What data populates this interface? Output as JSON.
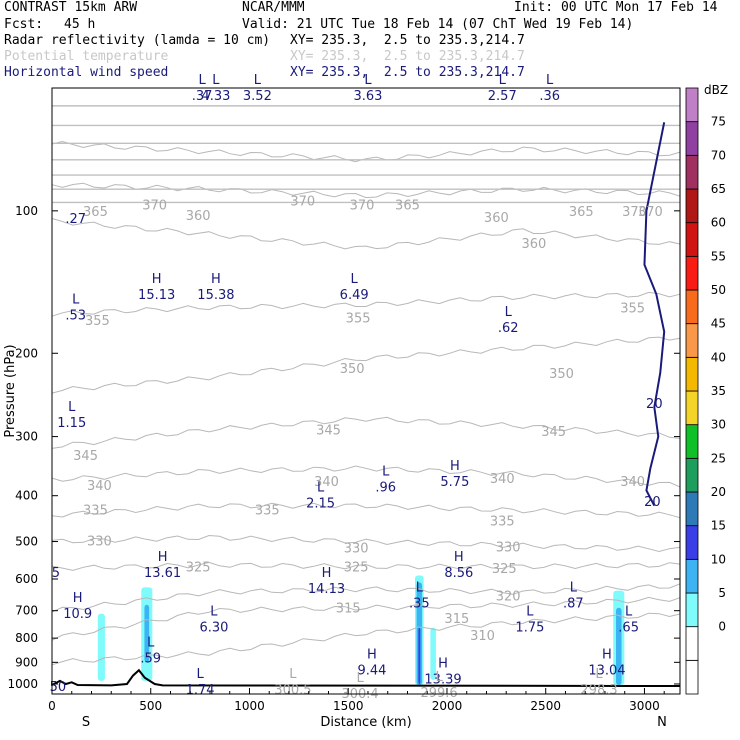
{
  "header": {
    "title_left": "CONTRAST 15km ARW",
    "title_center": "NCAR/MMM",
    "init": "Init: 00 UTC Mon 17 Feb 14",
    "fcst_label": "Fcst:",
    "fcst_value": "45 h",
    "valid": "Valid: 21 UTC Tue 18 Feb 14 (07 ChT Wed 19 Feb 14)",
    "field1": "Radar reflectivity (lamda = 10 cm)",
    "field1_xy": "XY= 235.3,  2.5 to 235.3,214.7",
    "field2": "Potential temperature",
    "field2_xy": "XY= 235.3,  2.5 to 235.3,214.7",
    "field3": "Horizontal wind speed",
    "field3_xy": "XY= 235.3,  2.5 to 235.3,214.7",
    "colors": {
      "field1": "#000000",
      "field2": "#c8c8c8",
      "field3": "#1a1a7a"
    }
  },
  "chart_data": {
    "type": "cross-section",
    "xlabel": "Distance (km)",
    "ylabel": "Pressure (hPa)",
    "xlim": [
      0,
      3180
    ],
    "ylim_hpa": [
      1050,
      55
    ],
    "x_ticks": [
      0,
      500,
      1000,
      1500,
      2000,
      2500,
      3000
    ],
    "y_ticks": [
      100,
      200,
      300,
      400,
      500,
      600,
      700,
      800,
      900,
      1000
    ],
    "x_end_labels": {
      "left": "S",
      "right": "N"
    },
    "colorbar": {
      "unit": "dBZ",
      "levels": [
        -5,
        0,
        5,
        10,
        15,
        20,
        25,
        30,
        35,
        40,
        45,
        50,
        55,
        60,
        65,
        70,
        75,
        80
      ],
      "tick_labels": [
        "0",
        "5",
        "10",
        "15",
        "20",
        "25",
        "30",
        "35",
        "40",
        "45",
        "50",
        "55",
        "60",
        "65",
        "70",
        "75"
      ],
      "colors": [
        "#ffffff",
        "#ffffff",
        "#7ffbfb",
        "#3cb4f4",
        "#3a3ee6",
        "#2e7ab7",
        "#1e9e5c",
        "#10c028",
        "#f4d428",
        "#f4b800",
        "#f89848",
        "#f86a1c",
        "#f81c14",
        "#d01414",
        "#b01818",
        "#a03060",
        "#9040a0",
        "#c080c8"
      ]
    },
    "theta_contours": [
      {
        "label": "370",
        "p": [
          72,
          75,
          78,
          74,
          76
        ]
      },
      {
        "label": "365",
        "p": [
          88,
          90,
          93,
          90,
          92
        ]
      },
      {
        "label": "360",
        "p": [
          105,
          112,
          120,
          110,
          118
        ]
      },
      {
        "label": "355",
        "p": [
          165,
          160,
          158,
          152,
          150
        ]
      },
      {
        "label": "350",
        "p": [
          240,
          225,
          205,
          195,
          185
        ]
      },
      {
        "label": "345",
        "p": [
          315,
          290,
          275,
          285,
          300
        ]
      },
      {
        "label": "340",
        "p": [
          370,
          355,
          350,
          360,
          380
        ]
      },
      {
        "label": "335",
        "p": [
          440,
          420,
          420,
          430,
          440
        ]
      },
      {
        "label": "330",
        "p": [
          500,
          490,
          500,
          510,
          520
        ]
      },
      {
        "label": "325",
        "p": [
          570,
          560,
          565,
          565,
          560
        ]
      },
      {
        "label": "320",
        "p": [
          700,
          640,
          630,
          640,
          620
        ]
      },
      {
        "label": "315",
        "p": [
          800,
          700,
          690,
          680,
          660
        ]
      },
      {
        "label": "310",
        "p": [
          900,
          860,
          780,
          740,
          710
        ]
      }
    ],
    "theta_labels": [
      {
        "x": 220,
        "p": 100,
        "text": "365"
      },
      {
        "x": 520,
        "p": 97,
        "text": "370"
      },
      {
        "x": 740,
        "p": 102,
        "text": "360"
      },
      {
        "x": 1270,
        "p": 95,
        "text": "370"
      },
      {
        "x": 1570,
        "p": 97,
        "text": "370"
      },
      {
        "x": 1800,
        "p": 97,
        "text": "365"
      },
      {
        "x": 2250,
        "p": 103,
        "text": "360"
      },
      {
        "x": 2440,
        "p": 117,
        "text": "360"
      },
      {
        "x": 2680,
        "p": 100,
        "text": "365"
      },
      {
        "x": 2950,
        "p": 100,
        "text": "370"
      },
      {
        "x": 230,
        "p": 170,
        "text": "355"
      },
      {
        "x": 1550,
        "p": 168,
        "text": "355"
      },
      {
        "x": 2940,
        "p": 160,
        "text": "355"
      },
      {
        "x": 1520,
        "p": 215,
        "text": "350"
      },
      {
        "x": 2580,
        "p": 220,
        "text": "350"
      },
      {
        "x": 1400,
        "p": 290,
        "text": "345"
      },
      {
        "x": 2540,
        "p": 292,
        "text": "345"
      },
      {
        "x": 170,
        "p": 328,
        "text": "345"
      },
      {
        "x": 240,
        "p": 380,
        "text": "340"
      },
      {
        "x": 1390,
        "p": 372,
        "text": "340"
      },
      {
        "x": 2280,
        "p": 367,
        "text": "340"
      },
      {
        "x": 2940,
        "p": 372,
        "text": "340"
      },
      {
        "x": 220,
        "p": 428,
        "text": "335"
      },
      {
        "x": 1090,
        "p": 428,
        "text": "335"
      },
      {
        "x": 2280,
        "p": 451,
        "text": "335"
      },
      {
        "x": 240,
        "p": 497,
        "text": "330"
      },
      {
        "x": 1540,
        "p": 515,
        "text": "330"
      },
      {
        "x": 2310,
        "p": 512,
        "text": "330"
      },
      {
        "x": 740,
        "p": 564,
        "text": "325"
      },
      {
        "x": 1540,
        "p": 564,
        "text": "325"
      },
      {
        "x": 2290,
        "p": 569,
        "text": "325"
      },
      {
        "x": 2310,
        "p": 650,
        "text": "320"
      },
      {
        "x": 1500,
        "p": 689,
        "text": "315"
      },
      {
        "x": 2050,
        "p": 726,
        "text": "315"
      },
      {
        "x": 2180,
        "p": 787,
        "text": "310"
      }
    ],
    "wind_extrema": [
      {
        "x": 760,
        "p": 55,
        "letter": "L",
        "value": ".37"
      },
      {
        "x": 830,
        "p": 55,
        "letter": "L",
        "value": "4.33"
      },
      {
        "x": 1040,
        "p": 55,
        "letter": "L",
        "value": "3.52"
      },
      {
        "x": 1600,
        "p": 55,
        "letter": "L",
        "value": "3.63"
      },
      {
        "x": 2280,
        "p": 55,
        "letter": "L",
        "value": "2.57"
      },
      {
        "x": 2520,
        "p": 55,
        "letter": "L",
        "value": ".36"
      },
      {
        "x": 120,
        "p": 100,
        "letter": "",
        "value": ".27"
      },
      {
        "x": 120,
        "p": 160,
        "letter": "L",
        "value": ".53"
      },
      {
        "x": 530,
        "p": 145,
        "letter": "H",
        "value": "15.13"
      },
      {
        "x": 830,
        "p": 145,
        "letter": "H",
        "value": "15.38"
      },
      {
        "x": 1530,
        "p": 145,
        "letter": "L",
        "value": "6.49"
      },
      {
        "x": 2310,
        "p": 170,
        "letter": "L",
        "value": ".62"
      },
      {
        "x": 100,
        "p": 270,
        "letter": "L",
        "value": "1.15"
      },
      {
        "x": 2040,
        "p": 360,
        "letter": "H",
        "value": "5.75"
      },
      {
        "x": 1690,
        "p": 370,
        "letter": "L",
        "value": ".96"
      },
      {
        "x": 1360,
        "p": 400,
        "letter": "L",
        "value": "2.15"
      },
      {
        "x": 20,
        "p": 560,
        "letter": "",
        "value": "5"
      },
      {
        "x": 560,
        "p": 560,
        "letter": "H",
        "value": "13.61"
      },
      {
        "x": 2060,
        "p": 560,
        "letter": "H",
        "value": "8.56"
      },
      {
        "x": 1390,
        "p": 606,
        "letter": "H",
        "value": "14.13"
      },
      {
        "x": 1860,
        "p": 650,
        "letter": "L",
        "value": ".35"
      },
      {
        "x": 2640,
        "p": 650,
        "letter": "L",
        "value": ".87"
      },
      {
        "x": 130,
        "p": 685,
        "letter": "H",
        "value": "10.9"
      },
      {
        "x": 820,
        "p": 730,
        "letter": "L",
        "value": "6.30"
      },
      {
        "x": 2420,
        "p": 730,
        "letter": "L",
        "value": "1.75"
      },
      {
        "x": 2920,
        "p": 730,
        "letter": "L",
        "value": ".65"
      },
      {
        "x": 500,
        "p": 850,
        "letter": "L",
        "value": ".59"
      },
      {
        "x": 1620,
        "p": 900,
        "letter": "H",
        "value": "9.44"
      },
      {
        "x": 2810,
        "p": 900,
        "letter": "H",
        "value": "13.04"
      },
      {
        "x": 1980,
        "p": 940,
        "letter": "H",
        "value": "13.39"
      },
      {
        "x": 750,
        "p": 990,
        "letter": "L",
        "value": "1.74"
      },
      {
        "x": 30,
        "p": 975,
        "letter": "",
        "value": "50"
      }
    ],
    "theta_extrema": [
      {
        "x": 1220,
        "p": 990,
        "letter": "L",
        "value": "300.5"
      },
      {
        "x": 1560,
        "p": 1010,
        "letter": "L",
        "value": "300.4"
      },
      {
        "x": 1960,
        "p": 1005,
        "letter": "L",
        "value": "299.6"
      },
      {
        "x": 2770,
        "p": 990,
        "letter": "L",
        "value": "298.3"
      }
    ],
    "wind_contour_labels": [
      {
        "x": 3030,
        "p": 100,
        "text": "370"
      },
      {
        "x": 3050,
        "p": 255,
        "text": "20"
      },
      {
        "x": 3040,
        "p": 410,
        "text": "20"
      }
    ],
    "reflectivity_columns": [
      {
        "x": 250,
        "halfwidth": 18,
        "p_top": 710,
        "p_bot": 985,
        "dbz": 5
      },
      {
        "x": 480,
        "halfwidth": 28,
        "p_top": 625,
        "p_bot": 985,
        "dbz": 5
      },
      {
        "x": 480,
        "halfwidth": 12,
        "p_top": 680,
        "p_bot": 900,
        "dbz": 10
      },
      {
        "x": 1860,
        "halfwidth": 22,
        "p_top": 590,
        "p_bot": 1005,
        "dbz": 5
      },
      {
        "x": 1860,
        "halfwidth": 14,
        "p_top": 610,
        "p_bot": 1005,
        "dbz": 10
      },
      {
        "x": 1860,
        "halfwidth": 5,
        "p_top": 760,
        "p_bot": 1000,
        "dbz": 15
      },
      {
        "x": 1930,
        "halfwidth": 14,
        "p_top": 760,
        "p_bot": 980,
        "dbz": 5
      },
      {
        "x": 2870,
        "halfwidth": 28,
        "p_top": 635,
        "p_bot": 1005,
        "dbz": 5
      },
      {
        "x": 2870,
        "halfwidth": 14,
        "p_top": 690,
        "p_bot": 1005,
        "dbz": 10
      }
    ],
    "terrain": [
      {
        "x": 0,
        "p": 1005
      },
      {
        "x": 40,
        "p": 985
      },
      {
        "x": 70,
        "p": 1000
      },
      {
        "x": 100,
        "p": 992
      },
      {
        "x": 130,
        "p": 1005
      },
      {
        "x": 300,
        "p": 1007
      },
      {
        "x": 380,
        "p": 1000
      },
      {
        "x": 410,
        "p": 960
      },
      {
        "x": 440,
        "p": 935
      },
      {
        "x": 470,
        "p": 970
      },
      {
        "x": 520,
        "p": 1000
      },
      {
        "x": 560,
        "p": 1007
      },
      {
        "x": 3180,
        "p": 1010
      }
    ],
    "wind_jet_line": [
      {
        "x": 3100,
        "p": 65
      },
      {
        "x": 3010,
        "p": 100
      },
      {
        "x": 3000,
        "p": 130
      },
      {
        "x": 3060,
        "p": 150
      },
      {
        "x": 3100,
        "p": 180
      },
      {
        "x": 3080,
        "p": 220
      },
      {
        "x": 3050,
        "p": 260
      },
      {
        "x": 3070,
        "p": 300
      },
      {
        "x": 3030,
        "p": 350
      },
      {
        "x": 3010,
        "p": 390
      },
      {
        "x": 3050,
        "p": 420
      }
    ]
  }
}
